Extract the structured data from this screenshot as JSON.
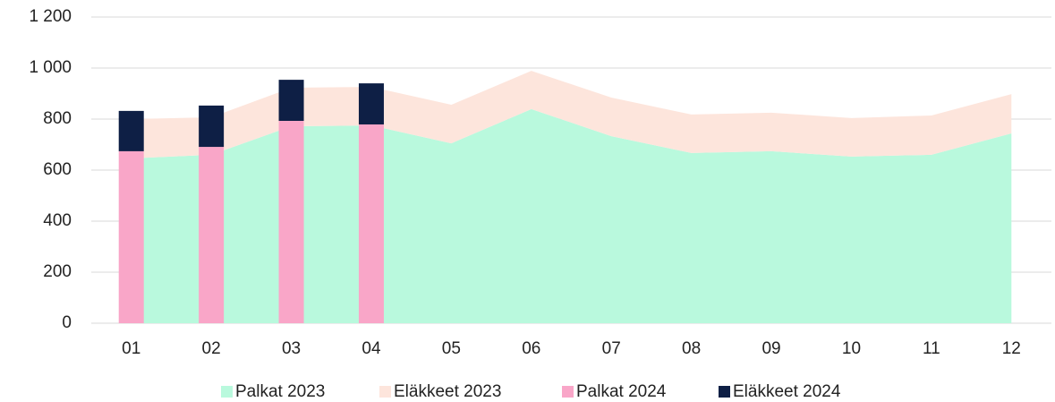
{
  "chart_data": {
    "type": "area",
    "categories": [
      "01",
      "02",
      "03",
      "04",
      "05",
      "06",
      "07",
      "08",
      "09",
      "10",
      "11",
      "12"
    ],
    "series": [
      {
        "name": "Palkat 2023",
        "type": "area",
        "stack": "2023",
        "color": "#b9f9dd",
        "values": [
          646,
          660,
          772,
          775,
          705,
          839,
          733,
          667,
          674,
          653,
          660,
          744
        ]
      },
      {
        "name": "Eläkkeet 2023",
        "type": "area",
        "stack": "2023",
        "color": "#fde5dc",
        "values": [
          154,
          147,
          151,
          151,
          151,
          150,
          151,
          151,
          151,
          151,
          154,
          154
        ]
      },
      {
        "name": "Palkat 2024",
        "type": "bar",
        "stack": "2024",
        "color": "#f9a6c8",
        "values": [
          674,
          691,
          793,
          779,
          null,
          null,
          null,
          null,
          null,
          null,
          null,
          null
        ]
      },
      {
        "name": "Eläkkeet 2024",
        "type": "bar",
        "stack": "2024",
        "color": "#0e1f45",
        "values": [
          158,
          162,
          161,
          161,
          null,
          null,
          null,
          null,
          null,
          null,
          null,
          null
        ]
      }
    ],
    "ylim": [
      0,
      1200
    ],
    "yticks": [
      0,
      200,
      400,
      600,
      800,
      {
        "value": 1000,
        "label": "1 000"
      },
      {
        "value": 1200,
        "label": "1 200"
      }
    ],
    "grid": true,
    "legend": "bottom"
  }
}
